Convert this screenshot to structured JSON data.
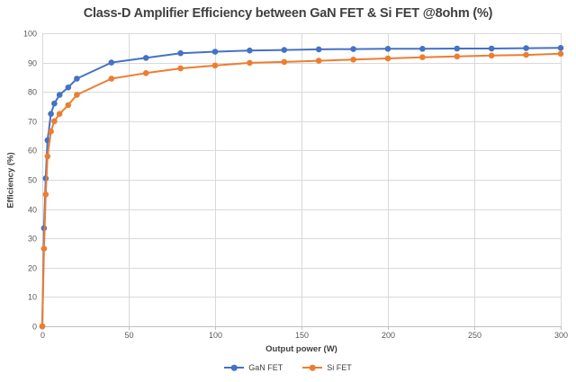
{
  "colors": {
    "gan": "#4472C4",
    "si": "#ED7D31",
    "gridline": "#D9D9D9",
    "axis_line": "#BFBFBF",
    "tick_label": "#595959",
    "heading_text": "#404040"
  },
  "chart_data": {
    "type": "line",
    "title": "Class-D Amplifier Efficiency between GaN FET & Si FET @8ohm (%)",
    "xlabel": "Output power (W)",
    "ylabel": "Efficiency (%)",
    "xlim": [
      0,
      300
    ],
    "ylim": [
      0,
      100
    ],
    "x_ticks": [
      0,
      50,
      100,
      150,
      200,
      250,
      300
    ],
    "y_ticks": [
      0,
      10,
      20,
      30,
      40,
      50,
      60,
      70,
      80,
      90,
      100
    ],
    "grid": true,
    "legend_position": "bottom",
    "marker": "circle",
    "x": [
      0,
      1,
      2,
      3,
      5,
      7,
      10,
      15,
      20,
      40,
      60,
      80,
      100,
      120,
      140,
      160,
      180,
      200,
      220,
      240,
      260,
      280,
      300
    ],
    "series": [
      {
        "name": "GaN FET",
        "color": "#4472C4",
        "values": [
          0,
          33.5,
          50.5,
          63.5,
          72.5,
          76,
          79,
          81.5,
          84.5,
          90,
          91.6,
          93.2,
          93.7,
          94.1,
          94.3,
          94.5,
          94.6,
          94.7,
          94.7,
          94.8,
          94.8,
          94.9,
          95
        ]
      },
      {
        "name": "Si FET",
        "color": "#ED7D31",
        "values": [
          0,
          26.5,
          45,
          58,
          66.5,
          70,
          72.5,
          75.5,
          79,
          84.5,
          86.4,
          88,
          89,
          89.9,
          90.2,
          90.6,
          91,
          91.4,
          91.8,
          92.1,
          92.4,
          92.6,
          93
        ]
      }
    ]
  }
}
